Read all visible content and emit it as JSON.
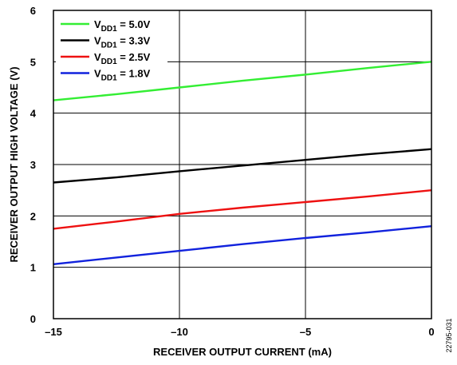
{
  "chart_data": {
    "type": "line",
    "title": "",
    "xlabel": "RECEIVER OUTPUT CURRENT (mA)",
    "ylabel": "RECEIVER OUTPUT HIGH VOLTAGE (V)",
    "xlim": [
      -15,
      0
    ],
    "ylim": [
      0,
      6
    ],
    "x_ticks": [
      -15,
      -10,
      -5,
      0
    ],
    "x_tick_labels": [
      "–15",
      "–10",
      "–5",
      "0"
    ],
    "y_ticks": [
      0,
      1,
      2,
      3,
      4,
      5,
      6
    ],
    "y_tick_labels": [
      "0",
      "1",
      "2",
      "3",
      "4",
      "5",
      "6"
    ],
    "grid": true,
    "legend_position": "top-left",
    "x": [
      -15,
      -12.5,
      -10,
      -7.5,
      -5,
      -2.5,
      0
    ],
    "series": [
      {
        "name_main": "V",
        "name_sub": "DD1",
        "name_rest": " = 5.0V",
        "color": "#33ee33",
        "values": [
          4.25,
          4.37,
          4.5,
          4.63,
          4.75,
          4.88,
          5.0
        ]
      },
      {
        "name_main": "V",
        "name_sub": "DD1",
        "name_rest": " = 3.3V",
        "color": "#000000",
        "values": [
          2.65,
          2.75,
          2.87,
          2.98,
          3.09,
          3.2,
          3.3
        ]
      },
      {
        "name_main": "V",
        "name_sub": "DD1",
        "name_rest": " = 2.5V",
        "color": "#ee1111",
        "values": [
          1.75,
          1.89,
          2.04,
          2.16,
          2.27,
          2.38,
          2.5
        ]
      },
      {
        "name_main": "V",
        "name_sub": "DD1",
        "name_rest": " = 1.8V",
        "color": "#1122dd",
        "values": [
          1.06,
          1.19,
          1.32,
          1.45,
          1.57,
          1.68,
          1.8
        ]
      }
    ]
  },
  "figure_id": "22795-031"
}
